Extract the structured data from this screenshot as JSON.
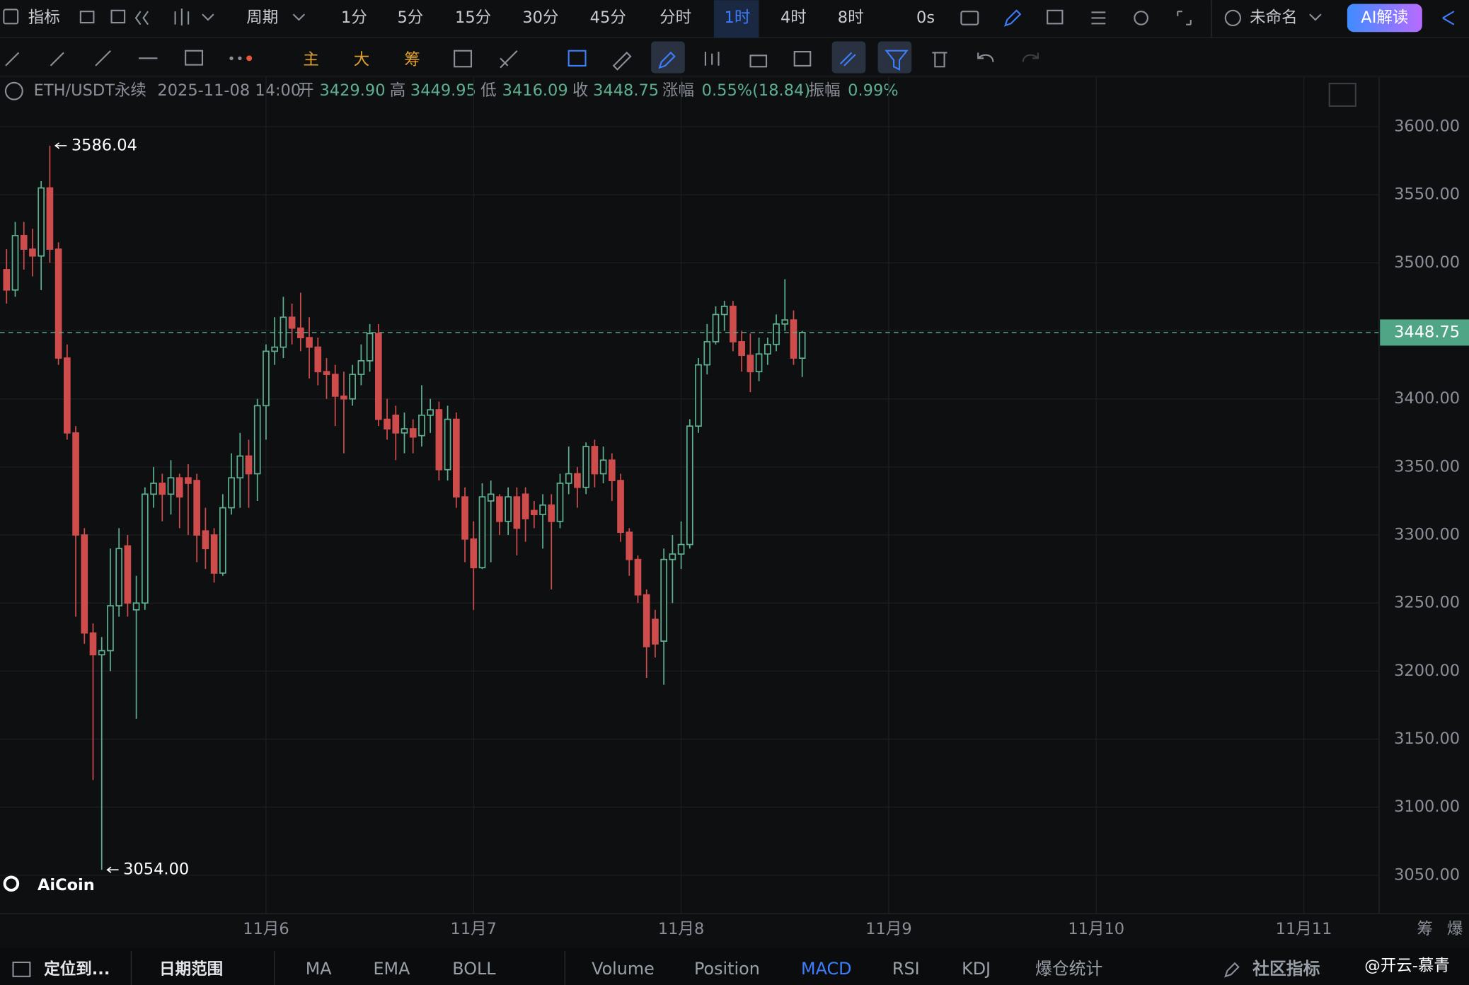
{
  "toolbar": {
    "indicator": "指标",
    "period": "周期",
    "intervals": [
      "1分",
      "5分",
      "15分",
      "30分",
      "45分",
      "分时",
      "1时",
      "4时",
      "8时",
      "0s"
    ],
    "layout_name": "未命名",
    "ai": "AI解读",
    "tools": [
      "主",
      "大",
      "筹"
    ]
  },
  "info": {
    "symbol": "ETH/USDT永续",
    "time": "2025-11-08 14:00",
    "stats": [
      {
        "label": "开",
        "value": "3429.90"
      },
      {
        "label": "高",
        "value": "3449.95"
      },
      {
        "label": "低",
        "value": "3416.09"
      },
      {
        "label": "收",
        "value": "3448.75"
      },
      {
        "label": "涨幅",
        "value": "0.55%(18.84)"
      },
      {
        "label": "振幅",
        "value": "0.99%"
      }
    ]
  },
  "chart_data": {
    "type": "candlestick",
    "colors": {
      "up": "#5cb08f",
      "down": "#cf4c4c"
    },
    "grid": true,
    "ylim": [
      3021.8,
      3636.5
    ],
    "yticks": [
      {
        "value": 3050,
        "label": "3050.00"
      },
      {
        "value": 3100,
        "label": "3100.00"
      },
      {
        "value": 3150,
        "label": "3150.00"
      },
      {
        "value": 3200,
        "label": "3200.00"
      },
      {
        "value": 3250,
        "label": "3250.00"
      },
      {
        "value": 3300,
        "label": "3300.00"
      },
      {
        "value": 3350,
        "label": "3350.00"
      },
      {
        "value": 3400,
        "label": "3400.00"
      },
      {
        "value": 3450,
        "label": "3450.00"
      },
      {
        "value": 3500,
        "label": "3500.00"
      },
      {
        "value": 3550,
        "label": "3550.00"
      },
      {
        "value": 3600,
        "label": "3600.00"
      }
    ],
    "xlim": [
      -0.76,
      158.7
    ],
    "xticks": [
      {
        "value": 30,
        "label": "11月6"
      },
      {
        "value": 54,
        "label": "11月7"
      },
      {
        "value": 78,
        "label": "11月8"
      },
      {
        "value": 102,
        "label": "11月9"
      },
      {
        "value": 126,
        "label": "11月10"
      },
      {
        "value": 150,
        "label": "11月11"
      }
    ],
    "last_price": {
      "value": 3448.75,
      "label": "3448.75"
    },
    "high_mark": {
      "value": 3586.04,
      "label": "3586.04"
    },
    "low_mark": {
      "value": 3054,
      "label": "3054.00"
    },
    "candles": [
      [
        3495,
        3510,
        3470,
        3480
      ],
      [
        3480,
        3530,
        3475,
        3520
      ],
      [
        3520,
        3530,
        3495,
        3510
      ],
      [
        3510,
        3525,
        3490,
        3505
      ],
      [
        3505,
        3560,
        3480,
        3555
      ],
      [
        3555,
        3586.04,
        3500,
        3510
      ],
      [
        3510,
        3515,
        3425,
        3430
      ],
      [
        3430,
        3440,
        3370,
        3375
      ],
      [
        3375,
        3380,
        3240,
        3300
      ],
      [
        3300,
        3305,
        3220,
        3228
      ],
      [
        3228,
        3235,
        3120,
        3212
      ],
      [
        3212,
        3225,
        3054,
        3215
      ],
      [
        3215,
        3290,
        3200,
        3248
      ],
      [
        3248,
        3305,
        3240,
        3290
      ],
      [
        3292,
        3300,
        3240,
        3250
      ],
      [
        3245,
        3270,
        3165,
        3250
      ],
      [
        3250,
        3335,
        3245,
        3330
      ],
      [
        3330,
        3350,
        3320,
        3338
      ],
      [
        3338,
        3345,
        3310,
        3330
      ],
      [
        3330,
        3355,
        3315,
        3342
      ],
      [
        3342,
        3345,
        3305,
        3328
      ],
      [
        3342,
        3352,
        3300,
        3338
      ],
      [
        3340,
        3345,
        3280,
        3300
      ],
      [
        3303,
        3320,
        3275,
        3290
      ],
      [
        3300,
        3305,
        3265,
        3272
      ],
      [
        3272,
        3330,
        3270,
        3320
      ],
      [
        3320,
        3360,
        3315,
        3342
      ],
      [
        3342,
        3375,
        3320,
        3358
      ],
      [
        3358,
        3370,
        3320,
        3345
      ],
      [
        3345,
        3400,
        3325,
        3395
      ],
      [
        3395,
        3440,
        3370,
        3435
      ],
      [
        3435,
        3460,
        3425,
        3438
      ],
      [
        3438,
        3475,
        3430,
        3460
      ],
      [
        3460,
        3470,
        3440,
        3452
      ],
      [
        3452,
        3478,
        3435,
        3445
      ],
      [
        3445,
        3460,
        3415,
        3438
      ],
      [
        3438,
        3445,
        3410,
        3420
      ],
      [
        3420,
        3430,
        3400,
        3418
      ],
      [
        3418,
        3425,
        3380,
        3402
      ],
      [
        3402,
        3420,
        3360,
        3400
      ],
      [
        3400,
        3425,
        3395,
        3418
      ],
      [
        3418,
        3440,
        3410,
        3428
      ],
      [
        3428,
        3455,
        3420,
        3448
      ],
      [
        3448,
        3455,
        3380,
        3385
      ],
      [
        3385,
        3400,
        3370,
        3378
      ],
      [
        3388,
        3395,
        3355,
        3375
      ],
      [
        3375,
        3390,
        3360,
        3378
      ],
      [
        3378,
        3385,
        3360,
        3372
      ],
      [
        3373,
        3410,
        3365,
        3388
      ],
      [
        3388,
        3400,
        3375,
        3392
      ],
      [
        3392,
        3398,
        3340,
        3348
      ],
      [
        3348,
        3395,
        3340,
        3385
      ],
      [
        3385,
        3390,
        3320,
        3328
      ],
      [
        3328,
        3335,
        3280,
        3297
      ],
      [
        3297,
        3310,
        3245,
        3276
      ],
      [
        3276,
        3338,
        3275,
        3328
      ],
      [
        3325,
        3340,
        3280,
        3330
      ],
      [
        3328,
        3330,
        3300,
        3310
      ],
      [
        3310,
        3335,
        3300,
        3328
      ],
      [
        3328,
        3335,
        3285,
        3305
      ],
      [
        3330,
        3335,
        3295,
        3312
      ],
      [
        3318,
        3325,
        3305,
        3315
      ],
      [
        3315,
        3330,
        3290,
        3322
      ],
      [
        3322,
        3330,
        3260,
        3310
      ],
      [
        3310,
        3345,
        3305,
        3338
      ],
      [
        3338,
        3365,
        3330,
        3345
      ],
      [
        3345,
        3350,
        3320,
        3335
      ],
      [
        3335,
        3368,
        3330,
        3365
      ],
      [
        3365,
        3370,
        3335,
        3345
      ],
      [
        3345,
        3365,
        3338,
        3355
      ],
      [
        3355,
        3360,
        3325,
        3340
      ],
      [
        3340,
        3345,
        3295,
        3302
      ],
      [
        3302,
        3305,
        3270,
        3282
      ],
      [
        3282,
        3285,
        3250,
        3256
      ],
      [
        3256,
        3260,
        3195,
        3218
      ],
      [
        3238,
        3245,
        3210,
        3220
      ],
      [
        3222,
        3290,
        3190,
        3282
      ],
      [
        3282,
        3300,
        3250,
        3286
      ],
      [
        3286,
        3310,
        3275,
        3293
      ],
      [
        3293,
        3385,
        3290,
        3380
      ],
      [
        3380,
        3430,
        3375,
        3425
      ],
      [
        3425,
        3455,
        3418,
        3442
      ],
      [
        3442,
        3468,
        3440,
        3462
      ],
      [
        3462,
        3472,
        3450,
        3468
      ],
      [
        3468,
        3472,
        3435,
        3442
      ],
      [
        3442,
        3450,
        3420,
        3432
      ],
      [
        3432,
        3448,
        3405,
        3420
      ],
      [
        3420,
        3445,
        3413,
        3433
      ],
      [
        3433,
        3445,
        3425,
        3440
      ],
      [
        3440,
        3462,
        3435,
        3455
      ],
      [
        3455,
        3488,
        3450,
        3458
      ],
      [
        3458,
        3465,
        3425,
        3430
      ],
      [
        3429.9,
        3449.95,
        3416.09,
        3448.75
      ]
    ]
  },
  "axis_buttons": [
    "筹",
    "爆"
  ],
  "watermark": "AiCoin",
  "bottom_bar": {
    "locate": "定位到...",
    "date_range": "日期范围",
    "main_indicators": [
      "MA",
      "EMA",
      "BOLL"
    ],
    "sub_indicators": [
      "Volume",
      "Position",
      "MACD",
      "RSI",
      "KDJ",
      "爆仓统计"
    ],
    "community": "社区指标",
    "credit": "@开云-慕青"
  }
}
